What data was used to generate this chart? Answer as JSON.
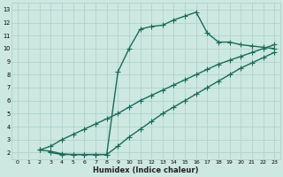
{
  "xlabel": "Humidex (Indice chaleur)",
  "bg_color": "#cce8e0",
  "grid_color": "#aacfc8",
  "line_color": "#1a6b5a",
  "xlim": [
    -0.5,
    23.5
  ],
  "ylim": [
    1.5,
    13.5
  ],
  "xticks": [
    0,
    1,
    2,
    3,
    4,
    5,
    6,
    7,
    8,
    9,
    10,
    11,
    12,
    13,
    14,
    15,
    16,
    17,
    18,
    19,
    20,
    21,
    22,
    23
  ],
  "yticks": [
    2,
    3,
    4,
    5,
    6,
    7,
    8,
    9,
    10,
    11,
    12,
    13
  ],
  "curve1_x": [
    2,
    3,
    4,
    5,
    6,
    7,
    8,
    9,
    10,
    11,
    12,
    13,
    14,
    15,
    16,
    17,
    18,
    19,
    20,
    21,
    22,
    23
  ],
  "curve1_y": [
    2.2,
    2.1,
    1.9,
    1.85,
    1.85,
    1.85,
    1.85,
    8.2,
    10.0,
    11.5,
    11.7,
    11.8,
    12.2,
    12.5,
    12.8,
    11.2,
    10.5,
    10.5,
    10.3,
    10.2,
    10.1,
    10.0
  ],
  "curve2_x": [
    2,
    3,
    4,
    5,
    6,
    7,
    8,
    9,
    10,
    11,
    12,
    13,
    14,
    15,
    16,
    17,
    18,
    19,
    20,
    21,
    22,
    23
  ],
  "curve2_y": [
    2.2,
    2.5,
    3.0,
    3.4,
    3.8,
    4.2,
    4.6,
    5.0,
    5.5,
    6.0,
    6.4,
    6.8,
    7.2,
    7.6,
    8.0,
    8.4,
    8.8,
    9.1,
    9.4,
    9.7,
    10.0,
    10.3
  ],
  "curve3_x": [
    3,
    4,
    5,
    6,
    7,
    8,
    9,
    10,
    11,
    12,
    13,
    14,
    15,
    16,
    17,
    18,
    19,
    20,
    21,
    22,
    23
  ],
  "curve3_y": [
    2.0,
    1.85,
    1.85,
    1.85,
    1.85,
    1.85,
    2.5,
    3.2,
    3.8,
    4.4,
    5.0,
    5.5,
    6.0,
    6.5,
    7.0,
    7.5,
    8.0,
    8.5,
    8.9,
    9.3,
    9.7
  ],
  "marker": "+",
  "marker_size": 4,
  "line_width": 1.0
}
